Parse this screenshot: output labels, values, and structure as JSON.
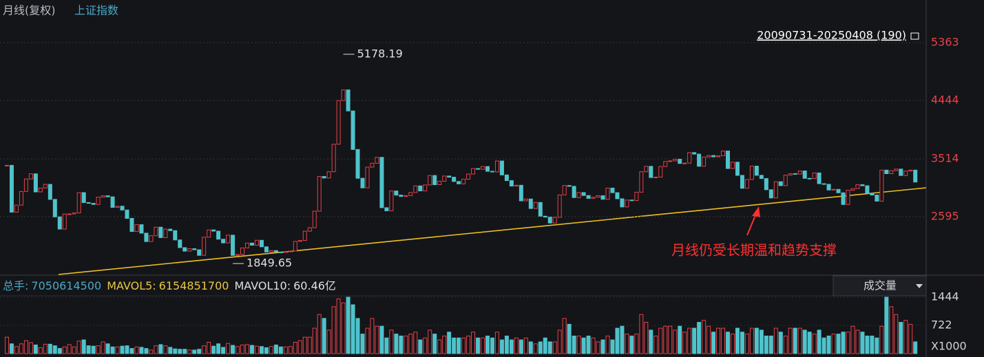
{
  "chart_data": {
    "type": "candlestick",
    "title": "月线(复权)",
    "subtitle": "上证指数",
    "range_label": "20090731-20250408 (190)",
    "annotation": "月线仍受长期温和趋势支撑",
    "high_label": 5178.19,
    "low_label": 1849.65,
    "ylim": [
      1687,
      5779
    ],
    "yticks": [
      2595,
      3514,
      4444,
      5363
    ],
    "grid": true,
    "up_color": "#e8414a",
    "down_color": "#4fc3cc",
    "values": [
      3412,
      2667,
      2779,
      2996,
      3195,
      3277,
      2989,
      3051,
      3109,
      2870,
      2592,
      2398,
      2638,
      2639,
      2655,
      2978,
      2820,
      2808,
      2790,
      2905,
      2928,
      2911,
      2743,
      2762,
      2701,
      2568,
      2359,
      2468,
      2333,
      2199,
      2292,
      2428,
      2262,
      2397,
      2373,
      2225,
      2103,
      2047,
      2086,
      2069,
      1980,
      2269,
      2385,
      2365,
      2237,
      2178,
      2301,
      1979,
      1994,
      2098,
      2175,
      2141,
      2220,
      2116,
      2033,
      2056,
      2033,
      2026,
      2039,
      2048,
      2202,
      2217,
      2364,
      2420,
      2683,
      3235,
      3210,
      3310,
      3748,
      4442,
      4612,
      4277,
      3664,
      3206,
      3053,
      3383,
      3445,
      3539,
      2738,
      2688,
      3004,
      2938,
      2917,
      2930,
      2979,
      3085,
      3005,
      3100,
      3250,
      3104,
      3159,
      3242,
      3223,
      3155,
      3117,
      3192,
      3273,
      3361,
      3349,
      3393,
      3317,
      3307,
      3481,
      3259,
      3169,
      3082,
      3095,
      2847,
      2876,
      2725,
      2821,
      2603,
      2588,
      2494,
      2585,
      2941,
      3091,
      3078,
      2899,
      2979,
      2932,
      2886,
      2905,
      2929,
      2872,
      3050,
      2977,
      2880,
      2750,
      2860,
      2852,
      2985,
      3310,
      3396,
      3218,
      3225,
      3392,
      3473,
      3483,
      3509,
      3442,
      3447,
      3615,
      3591,
      3397,
      3544,
      3568,
      3547,
      3564,
      3640,
      3361,
      3462,
      3252,
      3047,
      3186,
      3399,
      3253,
      3202,
      3024,
      2893,
      3151,
      3089,
      3256,
      3280,
      3273,
      3323,
      3205,
      3202,
      3291,
      3120,
      3110,
      3019,
      3030,
      2975,
      2789,
      3015,
      3041,
      3105,
      3087,
      2967,
      2939,
      2842,
      3336,
      3279,
      3326,
      3352,
      3250,
      3321,
      3336,
      3146
    ],
    "volume": {
      "title": "成交量",
      "unit_label": "X1000",
      "ylim": [
        0,
        1444
      ],
      "yticks": [
        722,
        1444
      ],
      "info": [
        {
          "label": "总手:",
          "value": 7050614500
        },
        {
          "label": "MAVOL5:",
          "value": 6154851700
        },
        {
          "label": "MAVOL10:",
          "value": "60.46亿"
        }
      ],
      "values": [
        420,
        250,
        180,
        250,
        330,
        280,
        220,
        150,
        240,
        240,
        200,
        130,
        170,
        230,
        170,
        320,
        350,
        200,
        190,
        200,
        300,
        250,
        170,
        170,
        190,
        200,
        130,
        170,
        160,
        130,
        90,
        200,
        230,
        200,
        160,
        120,
        110,
        110,
        90,
        90,
        110,
        200,
        290,
        190,
        250,
        160,
        260,
        210,
        180,
        220,
        230,
        210,
        190,
        180,
        150,
        180,
        220,
        170,
        170,
        180,
        290,
        330,
        420,
        420,
        650,
        1000,
        900,
        600,
        1200,
        1400,
        1300,
        1444,
        1250,
        900,
        500,
        650,
        900,
        700,
        700,
        400,
        600,
        500,
        450,
        450,
        500,
        550,
        350,
        400,
        600,
        500,
        350,
        450,
        550,
        400,
        400,
        400,
        450,
        550,
        400,
        400,
        450,
        400,
        550,
        350,
        450,
        350,
        400,
        350,
        400,
        300,
        250,
        300,
        400,
        300,
        300,
        600,
        900,
        750,
        450,
        450,
        400,
        450,
        400,
        300,
        350,
        450,
        350,
        650,
        700,
        500,
        450,
        500,
        1000,
        800,
        600,
        450,
        650,
        700,
        700,
        600,
        700,
        550,
        650,
        650,
        800,
        850,
        700,
        550,
        650,
        650,
        550,
        500,
        650,
        550,
        500,
        650,
        650,
        600,
        450,
        450,
        650,
        550,
        450,
        650,
        650,
        650,
        600,
        550,
        500,
        600,
        400,
        450,
        500,
        500,
        550,
        550,
        700,
        600,
        550,
        450,
        450,
        400,
        700,
        1444,
        1200,
        1000,
        800,
        850,
        750,
        300
      ]
    }
  }
}
